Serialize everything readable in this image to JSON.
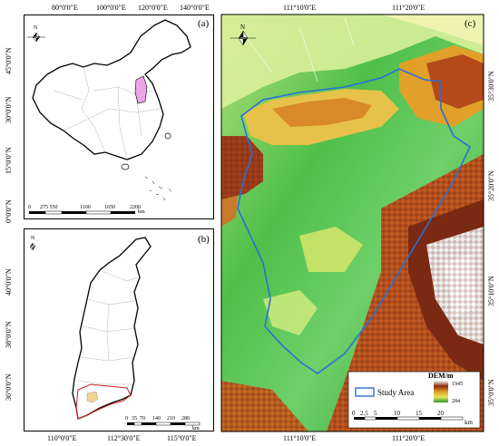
{
  "panel_a": {
    "tag": "(a)",
    "top_ticks": [
      "80°0'0\"E",
      "100°0'0\"E",
      "120°0'0\"E",
      "140°0'0\"E"
    ],
    "left_ticks": [
      "45°0'0\"N",
      "30°0'0\"N",
      "15°0'0\"N",
      "0°0'0\"N"
    ],
    "scale_ticks": [
      "0",
      "275 550",
      "1100",
      "1650",
      "2200"
    ],
    "scale_unit": "km",
    "north": "N"
  },
  "panel_b": {
    "tag": "(b)",
    "bottom_ticks": [
      "110°0'0\"E",
      "112°30'0\"E",
      "115°0'0\"E"
    ],
    "left_ticks": [
      "40°0'0\"N",
      "38°0'0\"N",
      "36°0'0\"N"
    ],
    "scale_ticks": [
      "0",
      "35",
      "70",
      "140",
      "210",
      "280"
    ],
    "scale_unit": "km",
    "north": "N"
  },
  "panel_c": {
    "tag": "(c)",
    "top_ticks": [
      "111°10'0\"E",
      "111°20'0\"E"
    ],
    "bottom_ticks": [
      "111°10'0\"E",
      "111°20'0\"E"
    ],
    "right_ticks": [
      "35°30'0\"N",
      "35°20'0\"N",
      "35°10'0\"N",
      "35°0'0\"N"
    ],
    "north": "N",
    "legend": {
      "study_area": "Study Area",
      "dem_title": "DEM/m",
      "dem_max": "1945",
      "dem_min": "204"
    },
    "scale_ticks": [
      "0",
      "2.5",
      "5",
      "10",
      "15",
      "20"
    ],
    "scale_unit": "km"
  },
  "colors": {
    "study_boundary": "#2a6fd6",
    "province_highlight": "#e8a6e8",
    "study_fill_b": "#f2d38f",
    "study_outline_b": "#cc2222"
  }
}
